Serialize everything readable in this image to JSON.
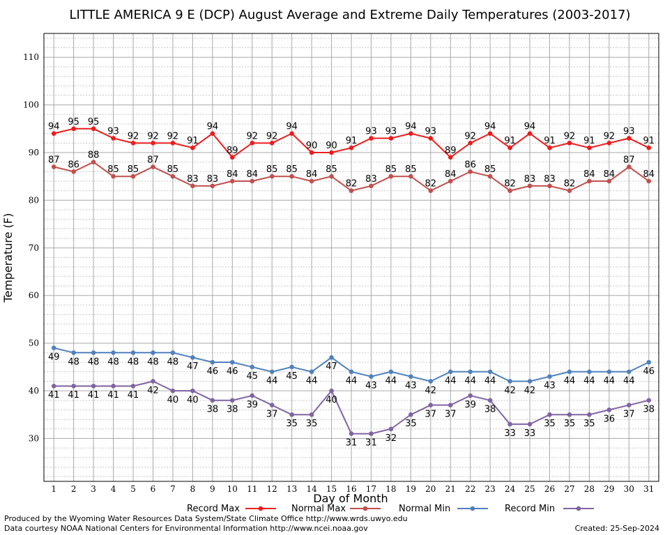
{
  "chart_data": {
    "type": "line",
    "title": "LITTLE AMERICA 9 E (DCP) August Average and Extreme Daily Temperatures (2003-2017)",
    "xlabel": "Day of Month",
    "ylabel": "Temperature (F)",
    "ylim": [
      21,
      115
    ],
    "yticks": [
      30,
      40,
      50,
      60,
      70,
      80,
      90,
      100,
      110
    ],
    "x": [
      1,
      2,
      3,
      4,
      5,
      6,
      7,
      8,
      9,
      10,
      11,
      12,
      13,
      14,
      15,
      16,
      17,
      18,
      19,
      20,
      21,
      22,
      23,
      24,
      25,
      26,
      27,
      28,
      29,
      30,
      31
    ],
    "grid": true,
    "legend_position": "bottom",
    "series": [
      {
        "name": "Record Max",
        "color": "#ee1c1c",
        "values": [
          94,
          95,
          95,
          93,
          92,
          92,
          92,
          91,
          94,
          89,
          92,
          92,
          94,
          90,
          90,
          91,
          93,
          93,
          94,
          93,
          89,
          92,
          94,
          91,
          94,
          91,
          92,
          91,
          92,
          93,
          91
        ]
      },
      {
        "name": "Normal Max",
        "color": "#c0504d",
        "values": [
          87,
          86,
          88,
          85,
          85,
          87,
          85,
          83,
          83,
          84,
          84,
          85,
          85,
          84,
          85,
          82,
          83,
          85,
          85,
          82,
          84,
          86,
          85,
          82,
          83,
          83,
          82,
          84,
          84,
          87,
          84
        ]
      },
      {
        "name": "Normal Min",
        "color": "#4f81bd",
        "values": [
          49,
          48,
          48,
          48,
          48,
          48,
          48,
          47,
          46,
          46,
          45,
          44,
          45,
          44,
          47,
          44,
          43,
          44,
          43,
          42,
          44,
          44,
          44,
          42,
          42,
          43,
          44,
          44,
          44,
          44,
          46
        ]
      },
      {
        "name": "Record Min",
        "color": "#8064a2",
        "values": [
          41,
          41,
          41,
          41,
          41,
          42,
          40,
          40,
          38,
          38,
          39,
          37,
          35,
          35,
          40,
          31,
          31,
          32,
          35,
          37,
          37,
          39,
          38,
          33,
          33,
          35,
          35,
          35,
          36,
          37,
          38
        ]
      }
    ]
  },
  "footer": {
    "produced_by": "Produced by the Wyoming Water Resources Data System/State Climate Office http://www.wrds.uwyo.edu",
    "courtesy": "Data courtesy NOAA National Centers for Environmental Information http://www.ncei.noaa.gov",
    "created": "Created:  25-Sep-2024"
  }
}
